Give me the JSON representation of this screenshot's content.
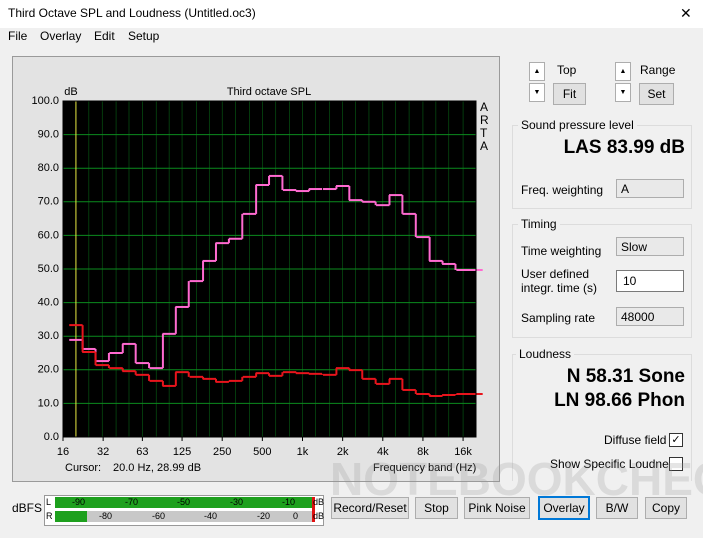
{
  "window": {
    "title": "Third Octave SPL and Loudness (Untitled.oc3)",
    "menu": [
      "File",
      "Overlay",
      "Edit",
      "Setup"
    ],
    "close": "✕"
  },
  "chart_data": {
    "type": "line",
    "title": "Third octave SPL",
    "y_label": "dB",
    "x_label": "Frequency band (Hz)",
    "side_label": "ARTA",
    "cursor_label": "Cursor:",
    "cursor_value": "20.0 Hz, 28.99 dB",
    "x": [
      20,
      25,
      31.5,
      40,
      50,
      63,
      80,
      100,
      125,
      160,
      200,
      250,
      315,
      400,
      500,
      630,
      800,
      1000,
      1250,
      1600,
      2000,
      2500,
      3150,
      4000,
      5000,
      6300,
      8000,
      10000,
      12500,
      16000,
      20000
    ],
    "series": [
      {
        "color": "#ff6ad0",
        "values": [
          28.9,
          26.2,
          22.6,
          25.0,
          27.7,
          22.0,
          20.5,
          30.7,
          38.7,
          46.4,
          52.4,
          57.7,
          59.0,
          66.4,
          75.0,
          77.7,
          73.5,
          73.2,
          73.8,
          73.8,
          74.7,
          70.5,
          70.0,
          69.0,
          72.0,
          66.4,
          59.5,
          52.4,
          51.5,
          49.7,
          49.7
        ]
      },
      {
        "color": "#e8141c",
        "values": [
          33.3,
          25.3,
          21.4,
          20.5,
          19.6,
          18.5,
          16.7,
          15.2,
          19.3,
          17.9,
          17.3,
          16.4,
          16.7,
          17.9,
          19.0,
          18.2,
          19.3,
          19.0,
          18.8,
          18.5,
          20.5,
          19.9,
          17.3,
          15.8,
          17.3,
          14.0,
          12.8,
          12.2,
          12.5,
          12.8,
          12.8
        ]
      }
    ],
    "xlim": [
      16,
      20000
    ],
    "log_x": true,
    "xticks": [
      16,
      32,
      63,
      125,
      250,
      500,
      {
        "value": 1000,
        "label": "1k"
      },
      {
        "value": 2000,
        "label": "2k"
      },
      {
        "value": 4000,
        "label": "4k"
      },
      {
        "value": 8000,
        "label": "8k"
      },
      {
        "value": 16000,
        "label": "16k"
      }
    ],
    "ylim": [
      0,
      100
    ],
    "yticks": [
      {
        "value": 0,
        "label": "0.0"
      },
      {
        "value": 10,
        "label": "10.0"
      },
      {
        "value": 20,
        "label": "20.0"
      },
      {
        "value": 30,
        "label": "30.0"
      },
      {
        "value": 40,
        "label": "40.0"
      },
      {
        "value": 50,
        "label": "50.0"
      },
      {
        "value": 60,
        "label": "60.0"
      },
      {
        "value": 70,
        "label": "70.0"
      },
      {
        "value": 80,
        "label": "80.0"
      },
      {
        "value": 90,
        "label": "90.0"
      },
      {
        "value": 100,
        "label": "100.0"
      }
    ],
    "grid": true,
    "grid_color": "#0b8a1e",
    "background": "#000000",
    "cursor_color": "#e8e840"
  },
  "controls": {
    "top": "Top",
    "fit": "Fit",
    "range": "Range",
    "set": "Set",
    "spl": {
      "title": "Sound pressure level",
      "reading": "LAS 83.99 dB",
      "freq_weighting_label": "Freq. weighting",
      "freq_weighting": "A"
    },
    "timing": {
      "title": "Timing",
      "time_weighting_label": "Time weighting",
      "time_weighting": "Slow",
      "integr_label": "User defined integr. time (s)",
      "integr_time": "10",
      "sampling_label": "Sampling rate",
      "sampling_rate": "48000"
    },
    "loudness": {
      "title": "Loudness",
      "sone": "N 58.31 Sone",
      "phon": "LN 98.66 Phon",
      "diffuse_field": "Diffuse field",
      "diffuse_field_checked": true,
      "show_specific": "Show Specific Loudness",
      "show_specific_checked": false
    }
  },
  "meter": {
    "label": "dBFS",
    "top": [
      "L",
      "-90",
      "-70",
      "-50",
      "-30",
      "-10",
      "dB"
    ],
    "bottom": [
      "R",
      "-80",
      "-60",
      "-40",
      "-20",
      "0",
      "dB"
    ]
  },
  "buttons": [
    "Record/Reset",
    "Stop",
    "Pink Noise",
    "Overlay",
    "B/W",
    "Copy"
  ],
  "watermark": "NOTEBOOKCHECK"
}
